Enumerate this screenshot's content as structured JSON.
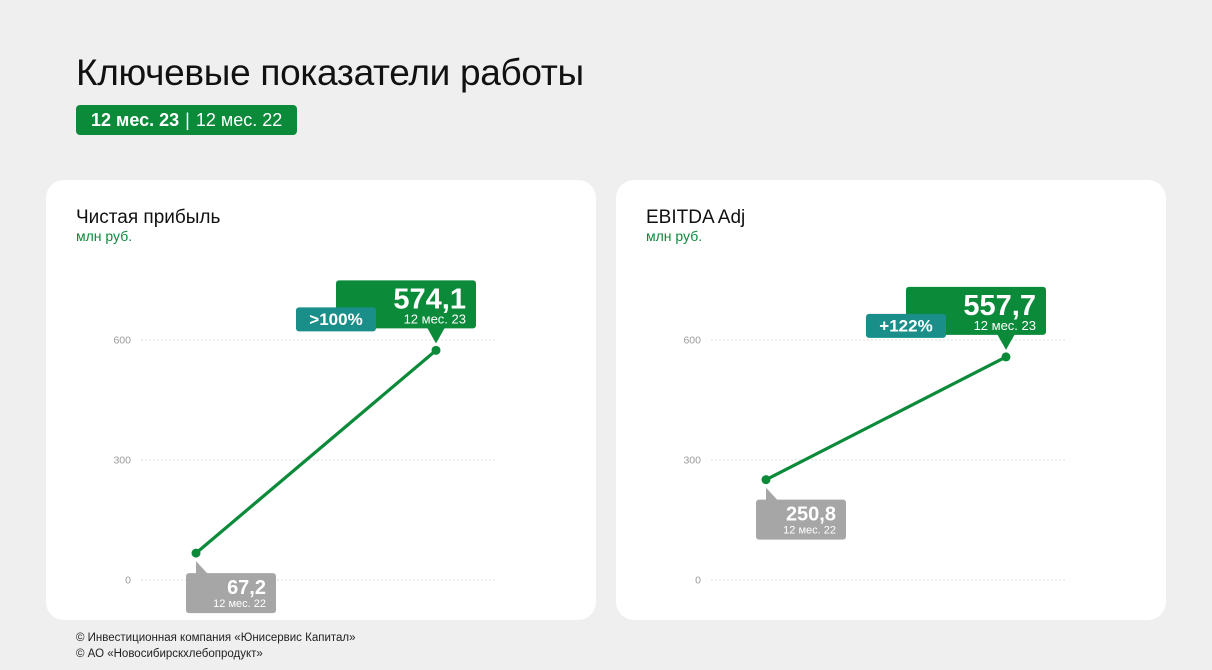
{
  "page": {
    "title": "Ключевые показатели работы",
    "period_current": "12 мес. 23",
    "period_separator": "|",
    "period_previous": "12 мес. 22"
  },
  "colors": {
    "accent": "#0b8a3a",
    "teal": "#1a8f8a",
    "gray_label": "#a6a6a6",
    "grid": "#dddddd",
    "background": "#efefef"
  },
  "footer": {
    "line1": "© Инвестиционная компания «Юнисервис Капитал»",
    "line2": "© АО «Новосибирскхлебопродукт»"
  },
  "chart_data": [
    {
      "type": "line",
      "title": "Чистая прибыль",
      "unit": "млн руб.",
      "x": [
        "12 мес. 22",
        "12 мес. 23"
      ],
      "values": [
        67.2,
        574.1
      ],
      "value_labels": [
        "67,2",
        "574,1"
      ],
      "period_labels": [
        "12 мес. 22",
        "12 мес. 23"
      ],
      "change_label": ">100%",
      "yticks": [
        0,
        300,
        600
      ],
      "ylim": [
        0,
        600
      ],
      "grid": true
    },
    {
      "type": "line",
      "title": "EBITDA Adj",
      "unit": "млн руб.",
      "x": [
        "12 мес. 22",
        "12 мес. 23"
      ],
      "values": [
        250.8,
        557.7
      ],
      "value_labels": [
        "250,8",
        "557,7"
      ],
      "period_labels": [
        "12 мес. 22",
        "12 мес. 23"
      ],
      "change_label": "+122%",
      "yticks": [
        0,
        300,
        600
      ],
      "ylim": [
        0,
        600
      ],
      "grid": true
    }
  ]
}
